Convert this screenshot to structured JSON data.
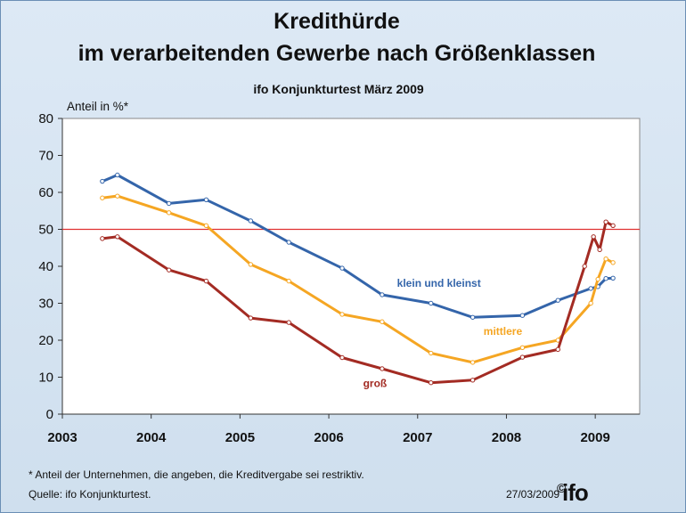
{
  "title_line1": "Kredithürde",
  "title_line2": "im verarbeitenden Gewerbe nach Größenklassen",
  "subtitle": "ifo Konjunkturtest März 2009",
  "footnote": "* Anteil der Unternehmen, die angeben, die Kreditvergabe sei restriktiv.",
  "source": "Quelle: ifo Konjunkturtest.",
  "date": "27/03/2009",
  "logo_text": "ifo",
  "copyright_symbol": "©",
  "chart_data": {
    "type": "line",
    "title": "Kredithürde im verarbeitenden Gewerbe nach Größenklassen",
    "subtitle": "ifo Konjunkturtest März 2009",
    "ylabel": "Anteil in %*",
    "xlabel": "",
    "ylim": [
      0,
      80
    ],
    "xlim": [
      2003.0,
      2009.5
    ],
    "yticks": [
      0,
      10,
      20,
      30,
      40,
      50,
      60,
      70,
      80
    ],
    "xticks": [
      "2003",
      "2004",
      "2005",
      "2006",
      "2007",
      "2008",
      "2009"
    ],
    "xtick_values": [
      2003,
      2004,
      2005,
      2006,
      2007,
      2008,
      2009
    ],
    "reference_line": {
      "value": 50,
      "color": "#e03030"
    },
    "series": [
      {
        "name": "klein und kleinst",
        "color": "#3465aa",
        "x": [
          2003.45,
          2003.62,
          2004.2,
          2004.62,
          2005.12,
          2005.55,
          2006.15,
          2006.6,
          2007.15,
          2007.62,
          2008.18,
          2008.58,
          2008.95,
          2009.03,
          2009.12,
          2009.2
        ],
        "values": [
          63,
          64.7,
          57,
          58,
          52.3,
          46.5,
          39.5,
          32.3,
          30,
          26.2,
          26.7,
          30.8,
          34,
          34.5,
          36.7,
          36.8
        ]
      },
      {
        "name": "mittlere",
        "color": "#f5a623",
        "x": [
          2003.45,
          2003.62,
          2004.2,
          2004.62,
          2005.12,
          2005.55,
          2006.15,
          2006.6,
          2007.15,
          2007.62,
          2008.18,
          2008.58,
          2008.95,
          2009.03,
          2009.12,
          2009.2
        ],
        "values": [
          58.5,
          59,
          54.5,
          51,
          40.5,
          36,
          27,
          25,
          16.5,
          14,
          18,
          20,
          30,
          36.5,
          42,
          41
        ]
      },
      {
        "name": "groß",
        "color": "#a32b23",
        "x": [
          2003.45,
          2003.62,
          2004.2,
          2004.62,
          2005.12,
          2005.55,
          2006.15,
          2006.6,
          2007.15,
          2007.62,
          2008.18,
          2008.58,
          2008.88,
          2008.98,
          2009.05,
          2009.12,
          2009.2
        ],
        "values": [
          47.5,
          48,
          39,
          36,
          26,
          24.8,
          15.3,
          12.3,
          8.5,
          9.2,
          15.4,
          17.5,
          40,
          48,
          44.5,
          52,
          51
        ]
      }
    ],
    "labels": [
      {
        "text": "klein und kleinst",
        "series": "klein und kleinst",
        "color": "#3465aa"
      },
      {
        "text": "mittlere",
        "series": "mittlere",
        "color": "#f5a623"
      },
      {
        "text": "groß",
        "series": "groß",
        "color": "#a32b23"
      }
    ]
  }
}
